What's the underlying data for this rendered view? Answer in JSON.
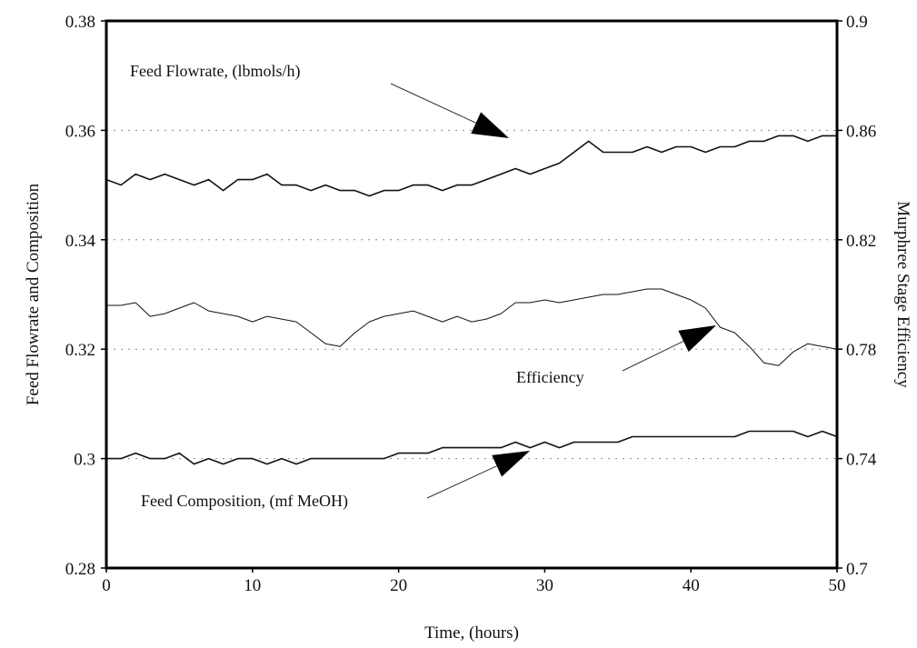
{
  "chart_data": {
    "type": "line",
    "title": "",
    "xlabel": "Time, (hours)",
    "ylabel": "Feed Flowrate and Composition",
    "y2label": "Murphree Stage Efficiency",
    "xlim": [
      0,
      50
    ],
    "ylim": [
      0.28,
      0.38
    ],
    "y2lim": [
      0.7,
      0.9
    ],
    "xticks": [
      "0",
      "10",
      "20",
      "30",
      "40",
      "50"
    ],
    "xtick_values": [
      0,
      10,
      20,
      30,
      40,
      50
    ],
    "yticks": [
      "0.28",
      "0.3",
      "0.32",
      "0.34",
      "0.36",
      "0.38"
    ],
    "ytick_values": [
      0.28,
      0.3,
      0.32,
      0.34,
      0.36,
      0.38
    ],
    "y2ticks": [
      "0.7",
      "0.74",
      "0.78",
      "0.82",
      "0.86",
      "0.9"
    ],
    "y2tick_values": [
      0.7,
      0.74,
      0.78,
      0.82,
      0.86,
      0.9
    ],
    "grid": "dotted horizontal",
    "x": [
      0,
      1,
      2,
      3,
      4,
      5,
      6,
      7,
      8,
      9,
      10,
      11,
      12,
      13,
      14,
      15,
      16,
      17,
      18,
      19,
      20,
      21,
      22,
      23,
      24,
      25,
      26,
      27,
      28,
      29,
      30,
      31,
      32,
      33,
      34,
      35,
      36,
      37,
      38,
      39,
      40,
      41,
      42,
      43,
      44,
      45,
      46,
      47,
      48,
      49,
      50
    ],
    "series": [
      {
        "name": "Feed Flowrate, (lbmols/h)",
        "axis": "left",
        "values": [
          0.351,
          0.35,
          0.352,
          0.351,
          0.352,
          0.351,
          0.35,
          0.351,
          0.349,
          0.351,
          0.351,
          0.352,
          0.35,
          0.35,
          0.349,
          0.35,
          0.349,
          0.349,
          0.348,
          0.349,
          0.349,
          0.35,
          0.35,
          0.349,
          0.35,
          0.35,
          0.351,
          0.352,
          0.353,
          0.352,
          0.353,
          0.354,
          0.356,
          0.358,
          0.356,
          0.356,
          0.356,
          0.357,
          0.356,
          0.357,
          0.357,
          0.356,
          0.357,
          0.357,
          0.358,
          0.358,
          0.359,
          0.359,
          0.358,
          0.359,
          0.359
        ]
      },
      {
        "name": "Efficiency",
        "axis": "right",
        "values": [
          0.796,
          0.796,
          0.797,
          0.792,
          0.793,
          0.795,
          0.797,
          0.794,
          0.793,
          0.792,
          0.79,
          0.792,
          0.791,
          0.79,
          0.786,
          0.782,
          0.781,
          0.786,
          0.79,
          0.792,
          0.793,
          0.794,
          0.792,
          0.79,
          0.792,
          0.79,
          0.791,
          0.793,
          0.797,
          0.797,
          0.798,
          0.797,
          0.798,
          0.799,
          0.8,
          0.8,
          0.801,
          0.802,
          0.802,
          0.8,
          0.798,
          0.795,
          0.788,
          0.786,
          0.781,
          0.775,
          0.774,
          0.779,
          0.782,
          0.781,
          0.78
        ]
      },
      {
        "name": "Feed Composition, (mf MeOH)",
        "axis": "left",
        "values": [
          0.3,
          0.3,
          0.301,
          0.3,
          0.3,
          0.301,
          0.299,
          0.3,
          0.299,
          0.3,
          0.3,
          0.299,
          0.3,
          0.299,
          0.3,
          0.3,
          0.3,
          0.3,
          0.3,
          0.3,
          0.301,
          0.301,
          0.301,
          0.302,
          0.302,
          0.302,
          0.302,
          0.302,
          0.303,
          0.302,
          0.303,
          0.302,
          0.303,
          0.303,
          0.303,
          0.303,
          0.304,
          0.304,
          0.304,
          0.304,
          0.304,
          0.304,
          0.304,
          0.304,
          0.305,
          0.305,
          0.305,
          0.305,
          0.304,
          0.305,
          0.304
        ]
      }
    ],
    "annotations": [
      {
        "text": "Feed Flowrate, (lbmols/h)",
        "points_to_x": 33
      },
      {
        "text": "Efficiency",
        "points_to_x": 41
      },
      {
        "text": "Feed Composition, (mf MeOH)",
        "points_to_x": 29
      }
    ]
  }
}
